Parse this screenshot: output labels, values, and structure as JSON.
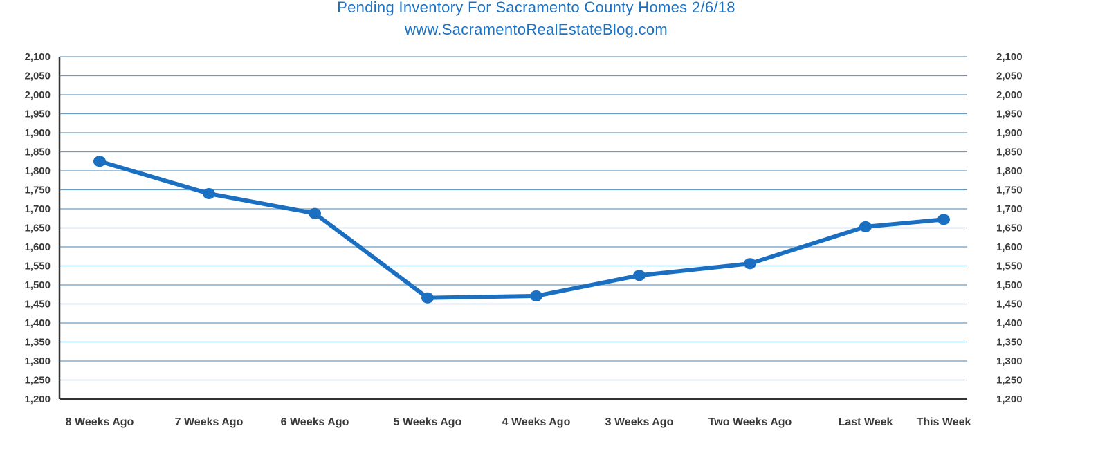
{
  "chart_data": {
    "type": "line",
    "title": "Pending Inventory For Sacramento County Homes 2/6/18",
    "subtitle": "www.SacramentoRealEstateBlog.com",
    "xlabel": "",
    "ylabel": "",
    "categories": [
      "8 Weeks Ago",
      "7 Weeks Ago",
      "6 Weeks Ago",
      "5 Weeks Ago",
      "4 Weeks Ago",
      "3 Weeks Ago",
      "Two Weeks Ago",
      "Last Week",
      "This Week"
    ],
    "series": [
      {
        "values": [
          1825,
          1740,
          1688,
          1466,
          1471,
          1525,
          1556,
          1653,
          1672
        ],
        "color": "#1a6fc1"
      }
    ],
    "ylim": [
      1200,
      2100
    ],
    "yticks": [
      "1,200",
      "1,250",
      "1,300",
      "1,350",
      "1,400",
      "1,450",
      "1,500",
      "1,550",
      "1,600",
      "1,650",
      "1,700",
      "1,750",
      "1,800",
      "1,850",
      "1,900",
      "1,950",
      "2,000",
      "2,050",
      "2,100"
    ],
    "secondary_y_axis": true,
    "grid": true,
    "legend": "none",
    "colors": {
      "line": "#1a6fc1",
      "grid": "#6a9cc4",
      "axis": "#333333",
      "title": "#1a72c4",
      "text": "#3a3a3a"
    }
  }
}
